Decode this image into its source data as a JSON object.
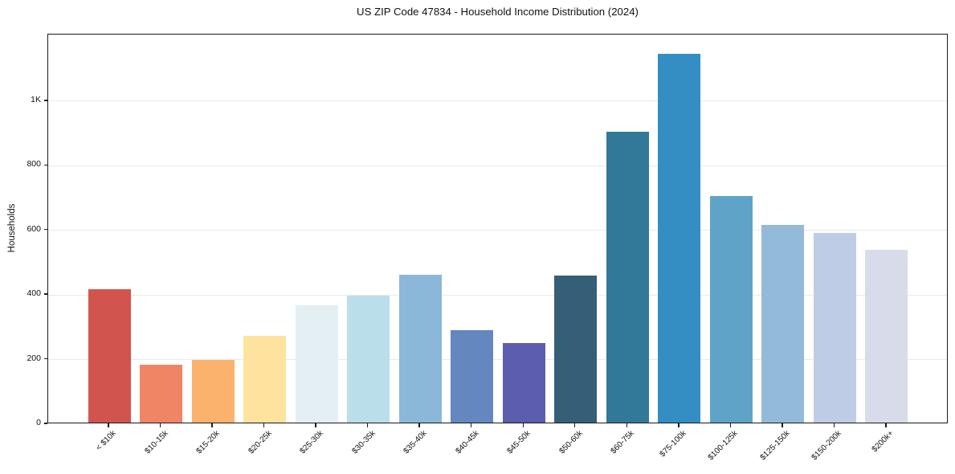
{
  "header": {
    "title": "US ZIP Code 47834 - Household Income Distribution (2024)"
  },
  "chart_data": {
    "type": "bar",
    "title": "US ZIP Code 47834 - Household Income Distribution (2024)",
    "xlabel": "",
    "ylabel": "Households",
    "categories": [
      "< $10k",
      "$10-15k",
      "$15-20k",
      "$20-25k",
      "$25-30k",
      "$30-35k",
      "$35-40k",
      "$40-45k",
      "$45-50k",
      "$50-60k",
      "$60-75k",
      "$75-100k",
      "$100-125k",
      "$125-150k",
      "$150-200k",
      "$200k+"
    ],
    "values": [
      412,
      178,
      193,
      268,
      364,
      393,
      458,
      286,
      246,
      455,
      900,
      1142,
      701,
      611,
      587,
      534
    ],
    "bar_colors": [
      "#d1544f",
      "#f08566",
      "#fab26c",
      "#fde39e",
      "#e4eff4",
      "#badeea",
      "#8bb7d9",
      "#6487c0",
      "#5c5dad",
      "#355f77",
      "#327899",
      "#348dc3",
      "#5fa4c8",
      "#93bad9",
      "#becce5",
      "#d8dbe9"
    ],
    "yticks": [
      {
        "value": 0,
        "label": "0"
      },
      {
        "value": 200,
        "label": "200"
      },
      {
        "value": 400,
        "label": "400"
      },
      {
        "value": 600,
        "label": "600"
      },
      {
        "value": 800,
        "label": "800"
      },
      {
        "value": 1000,
        "label": "1K"
      }
    ],
    "ylim": [
      0,
      1206
    ],
    "grid": "horizontal",
    "gridline_color": "#e9e9ee",
    "legend": "none",
    "x_tick_rotation": 45,
    "text_color": "#111111",
    "spine_color": "#1a1a1a"
  }
}
